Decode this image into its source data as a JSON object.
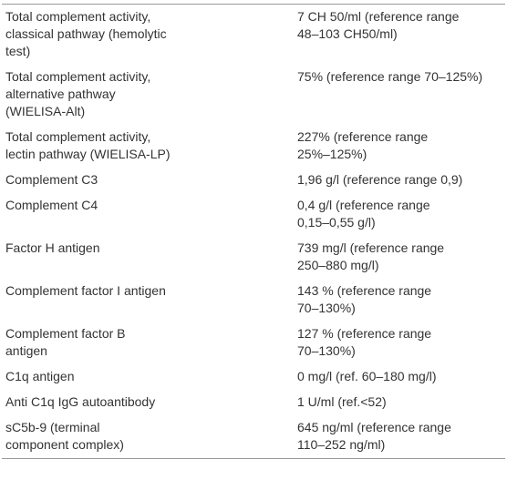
{
  "table": {
    "rows": [
      [
        [
          "Total complement activity,",
          "classical pathway (hemolytic",
          "test)"
        ],
        [
          "7 CH 50/ml (reference range",
          "48–103 CH50/ml)"
        ]
      ],
      [
        [
          "Total complement activity,",
          "alternative pathway",
          "(WIELISA-Alt)"
        ],
        [
          "75% (reference range 70–125%)"
        ]
      ],
      [
        [
          "Total complement activity,",
          "lectin pathway (WIELISA-LP)"
        ],
        [
          "227% (reference range",
          "25%–125%)"
        ]
      ],
      [
        [
          "Complement C3"
        ],
        [
          "1,96 g/l (reference range 0,9)"
        ]
      ],
      [
        [
          "Complement C4"
        ],
        [
          "0,4 g/l (reference range",
          "0,15–0,55 g/l)"
        ]
      ],
      [
        [
          "Factor H antigen"
        ],
        [
          "739 mg/l (reference range",
          "250–880 mg/l)"
        ]
      ],
      [
        [
          "Complement factor I antigen"
        ],
        [
          "143 % (reference range",
          "70–130%)"
        ]
      ],
      [
        [
          "Complement factor B",
          "antigen"
        ],
        [
          "127 % (reference range",
          "70–130%)"
        ]
      ],
      [
        [
          "C1q antigen"
        ],
        [
          "0 mg/l (ref. 60–180 mg/l)"
        ]
      ],
      [
        [
          "Anti C1q IgG autoantibody"
        ],
        [
          "1 U/ml (ref.<52)"
        ]
      ],
      [
        [
          "sC5b-9 (terminal",
          "component complex)"
        ],
        [
          "645 ng/ml (reference range",
          "110–252 ng/ml)"
        ]
      ]
    ]
  }
}
